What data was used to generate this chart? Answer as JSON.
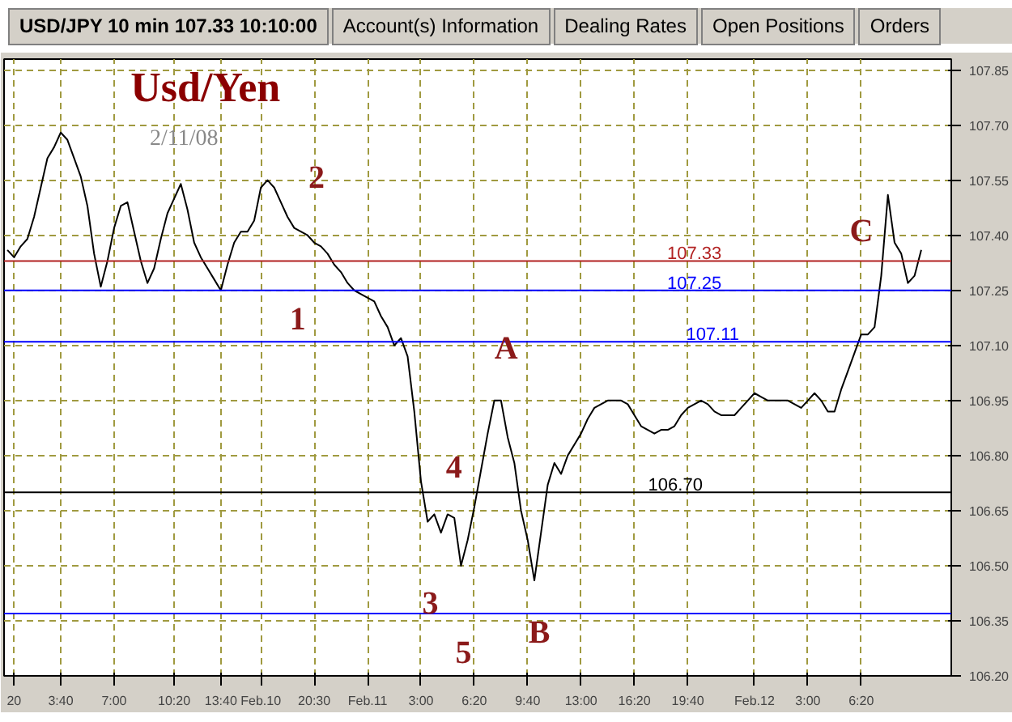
{
  "chart_data": {
    "type": "line",
    "title": "USD/JPY 10 min 107.33 10:10:00",
    "subtitle": "Usd/Yen",
    "categories": [
      null,
      "20",
      null,
      null,
      null,
      null,
      null,
      null,
      "3:40",
      null,
      null,
      null,
      null,
      null,
      null,
      null,
      "7:00",
      null,
      null,
      null,
      null,
      null,
      null,
      null,
      null,
      "10:20",
      null,
      null,
      null,
      null,
      null,
      null,
      "13:40",
      null,
      null,
      null,
      null,
      null,
      "Feb.10",
      null,
      null,
      null,
      null,
      null,
      null,
      null,
      "20:30",
      null,
      null,
      null,
      null,
      null,
      null,
      null,
      "Feb.11",
      null,
      null,
      null,
      null,
      null,
      null,
      null,
      "3:00",
      null,
      null,
      null,
      null,
      null,
      null,
      null,
      "6:20",
      null,
      null,
      null,
      null,
      null,
      null,
      null,
      "9:40",
      null,
      null,
      null,
      null,
      null,
      null,
      null,
      "13:00",
      null,
      null,
      null,
      null,
      null,
      null,
      null,
      "16:20",
      null,
      null,
      null,
      null,
      null,
      null,
      null,
      "19:40",
      null,
      null,
      null,
      null,
      null,
      null,
      null,
      null,
      null,
      "Feb.12",
      null,
      null,
      null,
      null,
      null,
      null,
      null,
      "3:00",
      null,
      null,
      null,
      null,
      null,
      null,
      null,
      "6:20",
      null,
      null,
      null,
      null,
      null,
      null,
      null,
      null,
      null,
      null,
      null,
      null,
      null
    ],
    "ylim": [
      106.2,
      107.88
    ],
    "yticks": [
      {
        "value": 106.2,
        "label": "106.20"
      },
      {
        "value": 106.35,
        "label": "106.35"
      },
      {
        "value": 106.5,
        "label": "106.50"
      },
      {
        "value": 106.65,
        "label": "106.65"
      },
      {
        "value": 106.8,
        "label": "106.80"
      },
      {
        "value": 106.95,
        "label": "106.95"
      },
      {
        "value": 107.1,
        "label": "107.10"
      },
      {
        "value": 107.25,
        "label": "107.25"
      },
      {
        "value": 107.4,
        "label": "107.40"
      },
      {
        "value": 107.55,
        "label": "107.55"
      },
      {
        "value": 107.7,
        "label": "107.70"
      },
      {
        "value": 107.85,
        "label": "107.85"
      }
    ],
    "grid": true,
    "series": [
      {
        "color": "#000000",
        "values": [
          107.36,
          107.34,
          107.37,
          107.39,
          107.45,
          107.53,
          107.61,
          107.64,
          107.68,
          107.66,
          107.61,
          107.56,
          107.48,
          107.35,
          107.26,
          107.33,
          107.42,
          107.48,
          107.49,
          107.41,
          107.33,
          107.27,
          107.31,
          107.39,
          107.46,
          107.5,
          107.54,
          107.47,
          107.38,
          107.34,
          107.31,
          107.28,
          107.25,
          107.32,
          107.38,
          107.41,
          107.41,
          107.44,
          107.53,
          107.55,
          107.53,
          107.49,
          107.45,
          107.42,
          107.41,
          107.4,
          107.38,
          107.37,
          107.35,
          107.32,
          107.3,
          107.27,
          107.25,
          107.24,
          107.23,
          107.22,
          107.18,
          107.15,
          107.1,
          107.12,
          107.07,
          106.92,
          106.73,
          106.62,
          106.64,
          106.59,
          106.64,
          106.63,
          106.5,
          106.57,
          106.66,
          106.76,
          106.86,
          106.95,
          106.95,
          106.85,
          106.78,
          106.65,
          106.57,
          106.46,
          106.59,
          106.72,
          106.78,
          106.75,
          106.8,
          106.83,
          106.86,
          106.9,
          106.93,
          106.94,
          106.95,
          106.95,
          106.95,
          106.94,
          106.91,
          106.88,
          106.87,
          106.86,
          106.87,
          106.87,
          106.88,
          106.91,
          106.93,
          106.94,
          106.95,
          106.94,
          106.92,
          106.91,
          106.91,
          106.91,
          106.93,
          106.95,
          106.97,
          106.96,
          106.95,
          106.95,
          106.95,
          106.95,
          106.94,
          106.93,
          106.95,
          106.97,
          106.95,
          106.92,
          106.92,
          106.98,
          107.03,
          107.08,
          107.13,
          107.13,
          107.15,
          107.29,
          107.51,
          107.38,
          107.35,
          107.27,
          107.29,
          107.36,
          null,
          null,
          null,
          null
        ]
      }
    ],
    "ref_lines": [
      {
        "axis": "y",
        "value": 107.33,
        "label": "107.33",
        "color": "#b22222"
      },
      {
        "axis": "y",
        "value": 107.25,
        "label": "107.25",
        "color": "#0000ff"
      },
      {
        "axis": "y",
        "value": 107.11,
        "label": "107.11",
        "color": "#0000ff"
      },
      {
        "axis": "y",
        "value": 106.7,
        "label": "106.70",
        "color": "#000000"
      },
      {
        "axis": "y",
        "value": 106.37,
        "color": "#0000ff"
      }
    ],
    "annotations": [
      "2/11/08",
      "1",
      "2",
      "3",
      "4",
      "5",
      "A",
      "B",
      "C",
      "Account(s) Information",
      "Dealing Rates",
      "Open Positions",
      "Orders"
    ]
  }
}
